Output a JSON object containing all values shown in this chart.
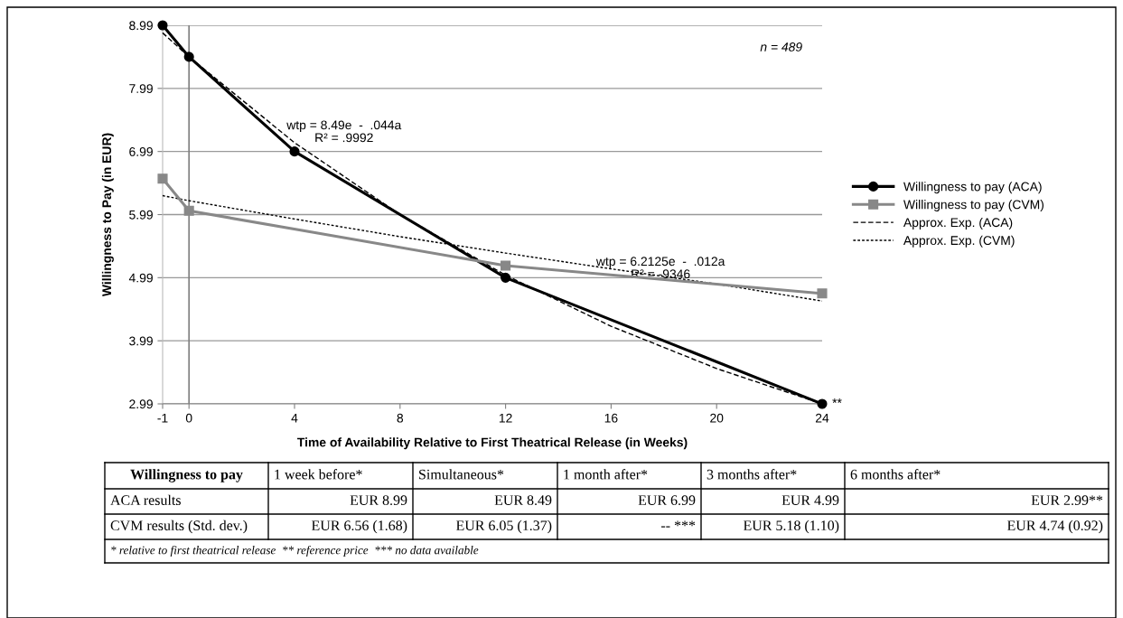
{
  "chart_data": {
    "type": "line",
    "xlabel": "Time of Availability Relative to First Theatrical Release (in Weeks)",
    "ylabel": "Willingness to Pay (in EUR)",
    "x": [
      -1,
      0,
      4,
      12,
      24
    ],
    "xlim": [
      -1,
      24
    ],
    "xticks": [
      -1,
      0,
      4,
      8,
      12,
      16,
      20,
      24
    ],
    "ylim": [
      2.99,
      8.99
    ],
    "yticks": [
      2.99,
      3.99,
      4.99,
      5.99,
      6.99,
      7.99,
      8.99
    ],
    "grid": "y",
    "legend": "right",
    "ref_lines": [
      {
        "axis": "x",
        "value": 0,
        "label": null,
        "color": "#808080"
      }
    ],
    "series": [
      {
        "name": "Willingness to pay (ACA)",
        "color": "#000000",
        "marker": "circle",
        "line_style": "solid",
        "values": [
          8.99,
          8.49,
          6.99,
          4.99,
          2.99
        ]
      },
      {
        "name": "Willingness to pay (CVM)",
        "color": "#888888",
        "marker": "square",
        "line_style": "solid",
        "values": [
          6.56,
          6.05,
          null,
          5.18,
          4.74
        ]
      },
      {
        "name": "Approx. Exp. (ACA)",
        "color": "#000000",
        "marker": "none",
        "line_style": "dashed",
        "x": [
          -1,
          0,
          4,
          8,
          12,
          16,
          20,
          24
        ],
        "values": [
          8.87,
          8.49,
          7.13,
          5.99,
          5.03,
          4.22,
          3.55,
          2.99
        ]
      },
      {
        "name": "Approx. Exp. (CVM)",
        "color": "#000000",
        "marker": "none",
        "line_style": "dotted",
        "x": [
          -1,
          0,
          4,
          8,
          12,
          16,
          20,
          24
        ],
        "values": [
          6.29,
          6.21,
          5.92,
          5.64,
          5.38,
          5.13,
          4.89,
          4.62
        ]
      }
    ],
    "annotations": [
      "n = 489",
      "wtp = 8.49e  -  .044a\nR² = .9992",
      "wtp = 6.2125e  -  .012a\nR² = -9346",
      {
        "text": "**",
        "x": 24,
        "y": 2.99
      },
      "Willingness to pay",
      "1 week before*",
      "Simultaneous*",
      "1 month after*",
      "3 months after*",
      "6 months after*",
      "ACA results",
      "EUR 8.99",
      "EUR 8.49",
      "EUR 6.99",
      "EUR 4.99",
      "EUR 2.99**",
      "CVM results (Std. dev.)",
      "EUR 6.56 (1.68)",
      "EUR 6.05 (1.37)",
      "-- ***",
      "EUR 5.18 (1.10)",
      "EUR 4.74 (0.92)",
      "* relative to first theatrical release  ** reference price  *** no data available"
    ]
  }
}
